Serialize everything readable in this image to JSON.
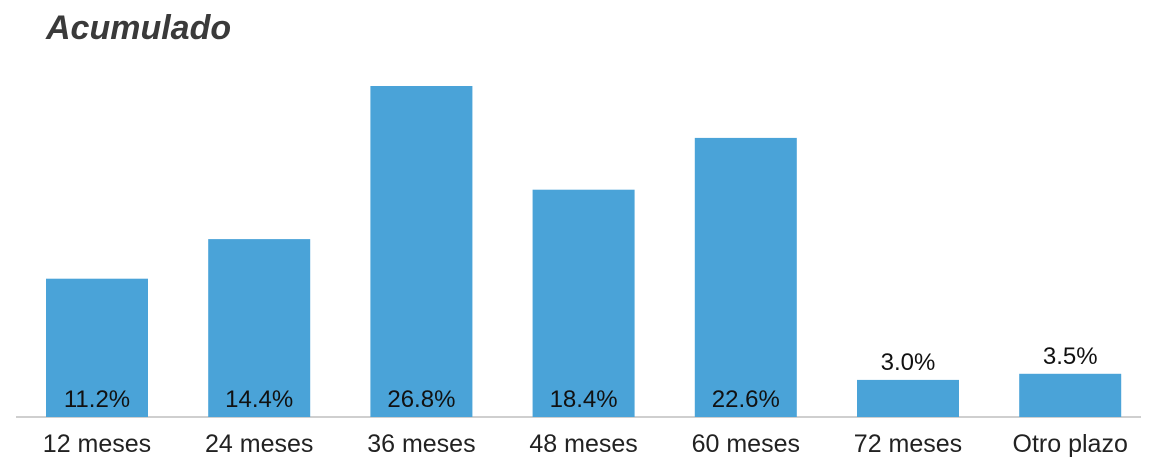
{
  "chart_data": {
    "type": "bar",
    "title": "Acumulado",
    "categories": [
      "12 meses",
      "24 meses",
      "36 meses",
      "48 meses",
      "60 meses",
      "72 meses",
      "Otro plazo"
    ],
    "values": [
      11.2,
      14.4,
      26.8,
      18.4,
      22.6,
      3.0,
      3.5
    ],
    "value_labels": [
      "11.2%",
      "14.4%",
      "26.8%",
      "18.4%",
      "22.6%",
      "3.0%",
      "3.5%"
    ],
    "value_label_position": [
      "inside-bottom",
      "inside-bottom",
      "inside-bottom",
      "inside-bottom",
      "inside-bottom",
      "above",
      "above"
    ],
    "bar_color": "#4aa3d8",
    "xlabel": "",
    "ylabel": "",
    "ylim": [
      0,
      28
    ],
    "grid": false,
    "legend": "none"
  }
}
